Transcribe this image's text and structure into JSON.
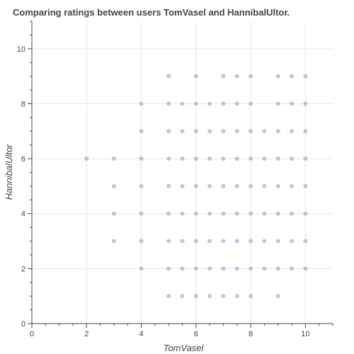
{
  "chart_data": {
    "type": "scatter",
    "title": "Comparing ratings between users TomVasel and HannibalUltor.",
    "xlabel": "TomVasel",
    "ylabel": "HannibalUltor",
    "xlim": [
      0,
      11
    ],
    "ylim": [
      0,
      11
    ],
    "x_ticks": [
      0,
      2,
      4,
      6,
      8,
      10
    ],
    "y_ticks": [
      0,
      2,
      4,
      6,
      8,
      10
    ],
    "grid": true,
    "legend": "none",
    "colors": {
      "point": "#7b7bc8",
      "grid": "#e6e6e6",
      "axis": "#444444"
    },
    "series": [
      {
        "points": [
          [
            2,
            6
          ],
          [
            3,
            6
          ],
          [
            3,
            5
          ],
          [
            3,
            4
          ],
          [
            3,
            3
          ],
          [
            4,
            8
          ],
          [
            4,
            7
          ],
          [
            4,
            6
          ],
          [
            4,
            5
          ],
          [
            4,
            4
          ],
          [
            4,
            3
          ],
          [
            4,
            2
          ],
          [
            5,
            9
          ],
          [
            5,
            8
          ],
          [
            5,
            7
          ],
          [
            5,
            6
          ],
          [
            5,
            5
          ],
          [
            5,
            4
          ],
          [
            5,
            3
          ],
          [
            5,
            2
          ],
          [
            5,
            1
          ],
          [
            5.5,
            8
          ],
          [
            5.5,
            7
          ],
          [
            5.5,
            6
          ],
          [
            5.5,
            5
          ],
          [
            5.5,
            4
          ],
          [
            5.5,
            3
          ],
          [
            5.5,
            2
          ],
          [
            5.5,
            1
          ],
          [
            6,
            9
          ],
          [
            6,
            8
          ],
          [
            6,
            7
          ],
          [
            6,
            6
          ],
          [
            6,
            5
          ],
          [
            6,
            4
          ],
          [
            6,
            3
          ],
          [
            6,
            2
          ],
          [
            6,
            1
          ],
          [
            6.5,
            8
          ],
          [
            6.5,
            7
          ],
          [
            6.5,
            6
          ],
          [
            6.5,
            5
          ],
          [
            6.5,
            4
          ],
          [
            6.5,
            3
          ],
          [
            6.5,
            2
          ],
          [
            6.5,
            1
          ],
          [
            7,
            9
          ],
          [
            7,
            8
          ],
          [
            7,
            7
          ],
          [
            7,
            6
          ],
          [
            7,
            5
          ],
          [
            7,
            4
          ],
          [
            7,
            3
          ],
          [
            7,
            2
          ],
          [
            7,
            1
          ],
          [
            7.5,
            9
          ],
          [
            7.5,
            8
          ],
          [
            7.5,
            7
          ],
          [
            7.5,
            6
          ],
          [
            7.5,
            5
          ],
          [
            7.5,
            4
          ],
          [
            7.5,
            3
          ],
          [
            7.5,
            2
          ],
          [
            7.5,
            1
          ],
          [
            8,
            9
          ],
          [
            8,
            8
          ],
          [
            8,
            7
          ],
          [
            8,
            6
          ],
          [
            8,
            5
          ],
          [
            8,
            4
          ],
          [
            8,
            3
          ],
          [
            8,
            2
          ],
          [
            8,
            1
          ],
          [
            8.5,
            7
          ],
          [
            8.5,
            6
          ],
          [
            8.5,
            5
          ],
          [
            8.5,
            4
          ],
          [
            8.5,
            3
          ],
          [
            8.5,
            2
          ],
          [
            9,
            9
          ],
          [
            9,
            8
          ],
          [
            9,
            7
          ],
          [
            9,
            6
          ],
          [
            9,
            5
          ],
          [
            9,
            4
          ],
          [
            9,
            3
          ],
          [
            9,
            2
          ],
          [
            9,
            1
          ],
          [
            9.5,
            9
          ],
          [
            9.5,
            8
          ],
          [
            9.5,
            7
          ],
          [
            9.5,
            6
          ],
          [
            9.5,
            5
          ],
          [
            9.5,
            4
          ],
          [
            9.5,
            3
          ],
          [
            9.5,
            2
          ],
          [
            10,
            9
          ],
          [
            10,
            8
          ],
          [
            10,
            7
          ],
          [
            10,
            6
          ],
          [
            10,
            5
          ],
          [
            10,
            4
          ],
          [
            10,
            3
          ],
          [
            10,
            2
          ]
        ]
      }
    ]
  }
}
